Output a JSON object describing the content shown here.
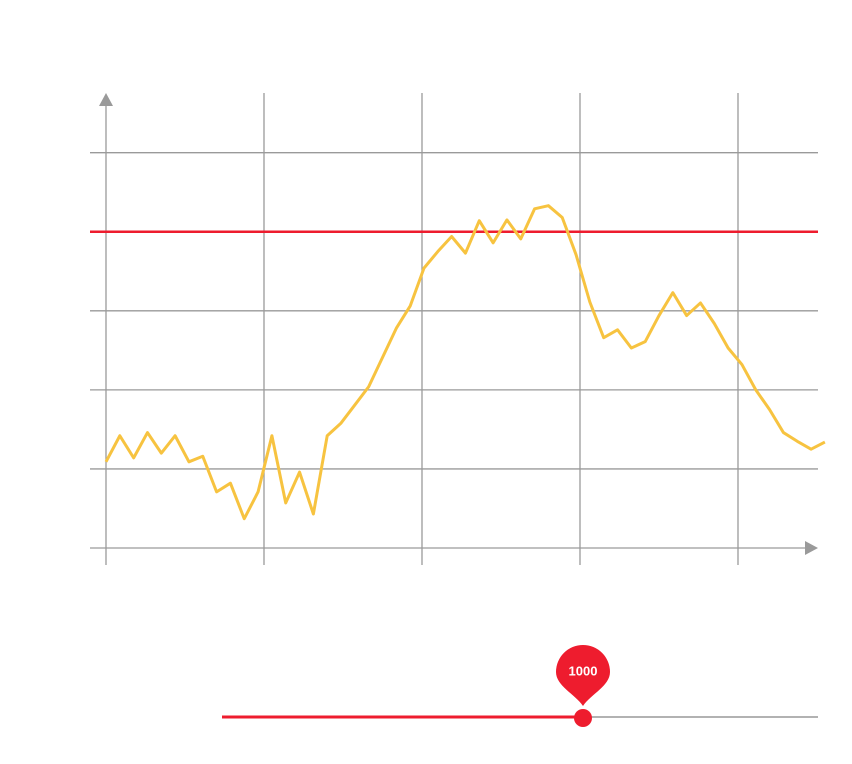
{
  "chart_data": {
    "type": "line",
    "x": [
      0,
      0.0875,
      0.175,
      0.2625,
      0.35,
      0.4375,
      0.525,
      0.6125,
      0.7,
      0.7875,
      0.875,
      0.9625,
      1.05,
      1.1375,
      1.225,
      1.3125,
      1.4,
      1.4875,
      1.575,
      1.6625,
      1.75,
      1.8375,
      1.925,
      2.0125,
      2.1,
      2.1875,
      2.275,
      2.3625,
      2.45,
      2.5375,
      2.625,
      2.7125,
      2.8,
      2.8875,
      2.975,
      3.0625,
      3.15,
      3.2375,
      3.325,
      3.4125,
      3.5,
      3.5875,
      3.675,
      3.7625,
      3.85,
      3.9375,
      4.025,
      4.1125,
      4.2,
      4.2875,
      4.375,
      4.4625,
      4.55
    ],
    "values": [
      1.09,
      1.42,
      1.14,
      1.46,
      1.2,
      1.42,
      1.09,
      1.16,
      0.71,
      0.82,
      0.37,
      0.71,
      1.42,
      0.57,
      0.96,
      0.43,
      1.42,
      1.58,
      1.81,
      2.04,
      2.41,
      2.78,
      3.06,
      3.54,
      3.75,
      3.94,
      3.73,
      4.14,
      3.86,
      4.15,
      3.91,
      4.29,
      4.33,
      4.18,
      3.71,
      3.11,
      2.66,
      2.76,
      2.53,
      2.61,
      2.94,
      3.23,
      2.94,
      3.1,
      2.84,
      2.53,
      2.32,
      2.0,
      1.75,
      1.46,
      1.35,
      1.25,
      1.34
    ],
    "color": "#f7c340",
    "threshold": 4,
    "threshold_color": "#ee1c2e",
    "xlim": [
      0,
      4.5
    ],
    "xticks": [
      0,
      1,
      2,
      3,
      4
    ],
    "ylim": [
      0,
      5.73
    ],
    "yticks": [
      0,
      1,
      2,
      3,
      4,
      5
    ],
    "grid": true
  },
  "slider": {
    "value": 1000,
    "color": "#ee1c2e"
  }
}
